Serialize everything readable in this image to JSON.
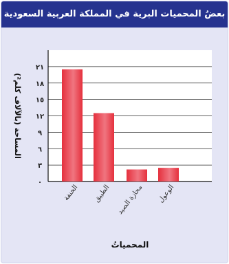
{
  "chart_data": {
    "type": "bar",
    "title": "بعضُ المحميات البرية في المملكة العربية السعودية",
    "xlabel": "المحمياتُ",
    "ylabel": "المساحة (بالآلاف كلم²)",
    "categories": [
      "الخنفة",
      "الطبيق",
      "محازة الصيد",
      "الوعول"
    ],
    "values": [
      20.5,
      12.5,
      2.2,
      2.5
    ],
    "ylim": [
      0,
      24
    ],
    "yticks": [
      0,
      3,
      6,
      9,
      12,
      15,
      18,
      21
    ],
    "ytick_labels": [
      "٠",
      "٣",
      "٦",
      "٩",
      "١٢",
      "١٥",
      "١٨",
      "٢١"
    ],
    "grid": true,
    "colors": {
      "bar": "#e5303d",
      "bar_light": "#f07580",
      "plot_bg": "#ffffff",
      "page_bg": "#e4e5f5",
      "header_bg": "#26338f",
      "grid": "#2a2a2a"
    }
  }
}
